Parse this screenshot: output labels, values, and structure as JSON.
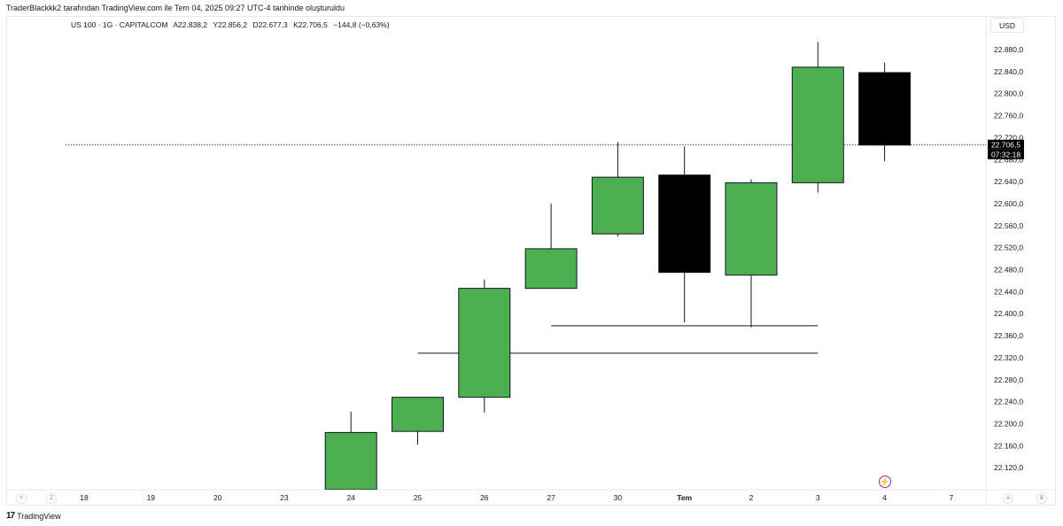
{
  "header": {
    "caption": "TraderBlackkk2 tarafından TradingView.com ile Tem 04, 2025 09:27 UTC-4 tarihinde oluşturuldu"
  },
  "legend": {
    "symbol": "US 100 · 1G · CAPITALCOM",
    "open": "A22.838,2",
    "high": "Y22.856,2",
    "low": "D22.677,3",
    "close": "K22.706,5",
    "change": "−144,8 (−0,63%)"
  },
  "price_scale": {
    "currency": "USD",
    "last_price_label": "22.706,5",
    "countdown_label": "07:32:18"
  },
  "bottom_controls": {
    "left_a": "Y",
    "left_b": "Z",
    "right_a": "A",
    "right_b": "B"
  },
  "footer": {
    "brand": "TradingView",
    "mark": "17"
  },
  "colors": {
    "up": "#4caf50",
    "down": "#000000",
    "wick": "#131722",
    "last_price": "#000000"
  },
  "icons": {
    "bolt": "lightning-bolt-icon"
  },
  "chart_data": {
    "type": "candlestick",
    "x_tick_labels": [
      "18",
      "19",
      "20",
      "23",
      "24",
      "25",
      "26",
      "27",
      "30",
      "Tem",
      "2",
      "3",
      "4",
      "7"
    ],
    "y_tick_labels": [
      "22.880,0",
      "22.840,0",
      "22.800,0",
      "22.760,0",
      "22.720,0",
      "22.680,0",
      "22.640,0",
      "22.600,0",
      "22.560,0",
      "22.520,0",
      "22.480,0",
      "22.440,0",
      "22.400,0",
      "22.360,0",
      "22.320,0",
      "22.280,0",
      "22.240,0",
      "22.200,0",
      "22.160,0",
      "22.120,0"
    ],
    "y_ticks": [
      22880,
      22840,
      22800,
      22760,
      22720,
      22680,
      22640,
      22600,
      22560,
      22520,
      22480,
      22440,
      22400,
      22360,
      22320,
      22280,
      22240,
      22200,
      22160,
      22120
    ],
    "ylim": [
      22080,
      22920
    ],
    "last_price": 22706.5,
    "candles": [
      {
        "x": "24",
        "open": 22080,
        "high": 22222,
        "low": 22080,
        "close": 22184
      },
      {
        "x": "25",
        "open": 22186,
        "high": 22248,
        "low": 22162,
        "close": 22248
      },
      {
        "x": "26",
        "open": 22248,
        "high": 22462,
        "low": 22220,
        "close": 22446
      },
      {
        "x": "27",
        "open": 22446,
        "high": 22600,
        "low": 22446,
        "close": 22518
      },
      {
        "x": "30",
        "open": 22545,
        "high": 22712,
        "low": 22540,
        "close": 22648
      },
      {
        "x": "Tem",
        "open": 22652,
        "high": 22704,
        "low": 22384,
        "close": 22475
      },
      {
        "x": "2",
        "open": 22470,
        "high": 22644,
        "low": 22375,
        "close": 22638
      },
      {
        "x": "3",
        "open": 22638,
        "high": 22894,
        "low": 22620,
        "close": 22848
      },
      {
        "x": "4",
        "open": 22838.2,
        "high": 22856.2,
        "low": 22677.3,
        "close": 22706.5
      }
    ],
    "levels": [
      {
        "price": 22378,
        "from": "27",
        "to": "3"
      },
      {
        "price": 22328,
        "from": "25",
        "to": "3"
      }
    ]
  }
}
